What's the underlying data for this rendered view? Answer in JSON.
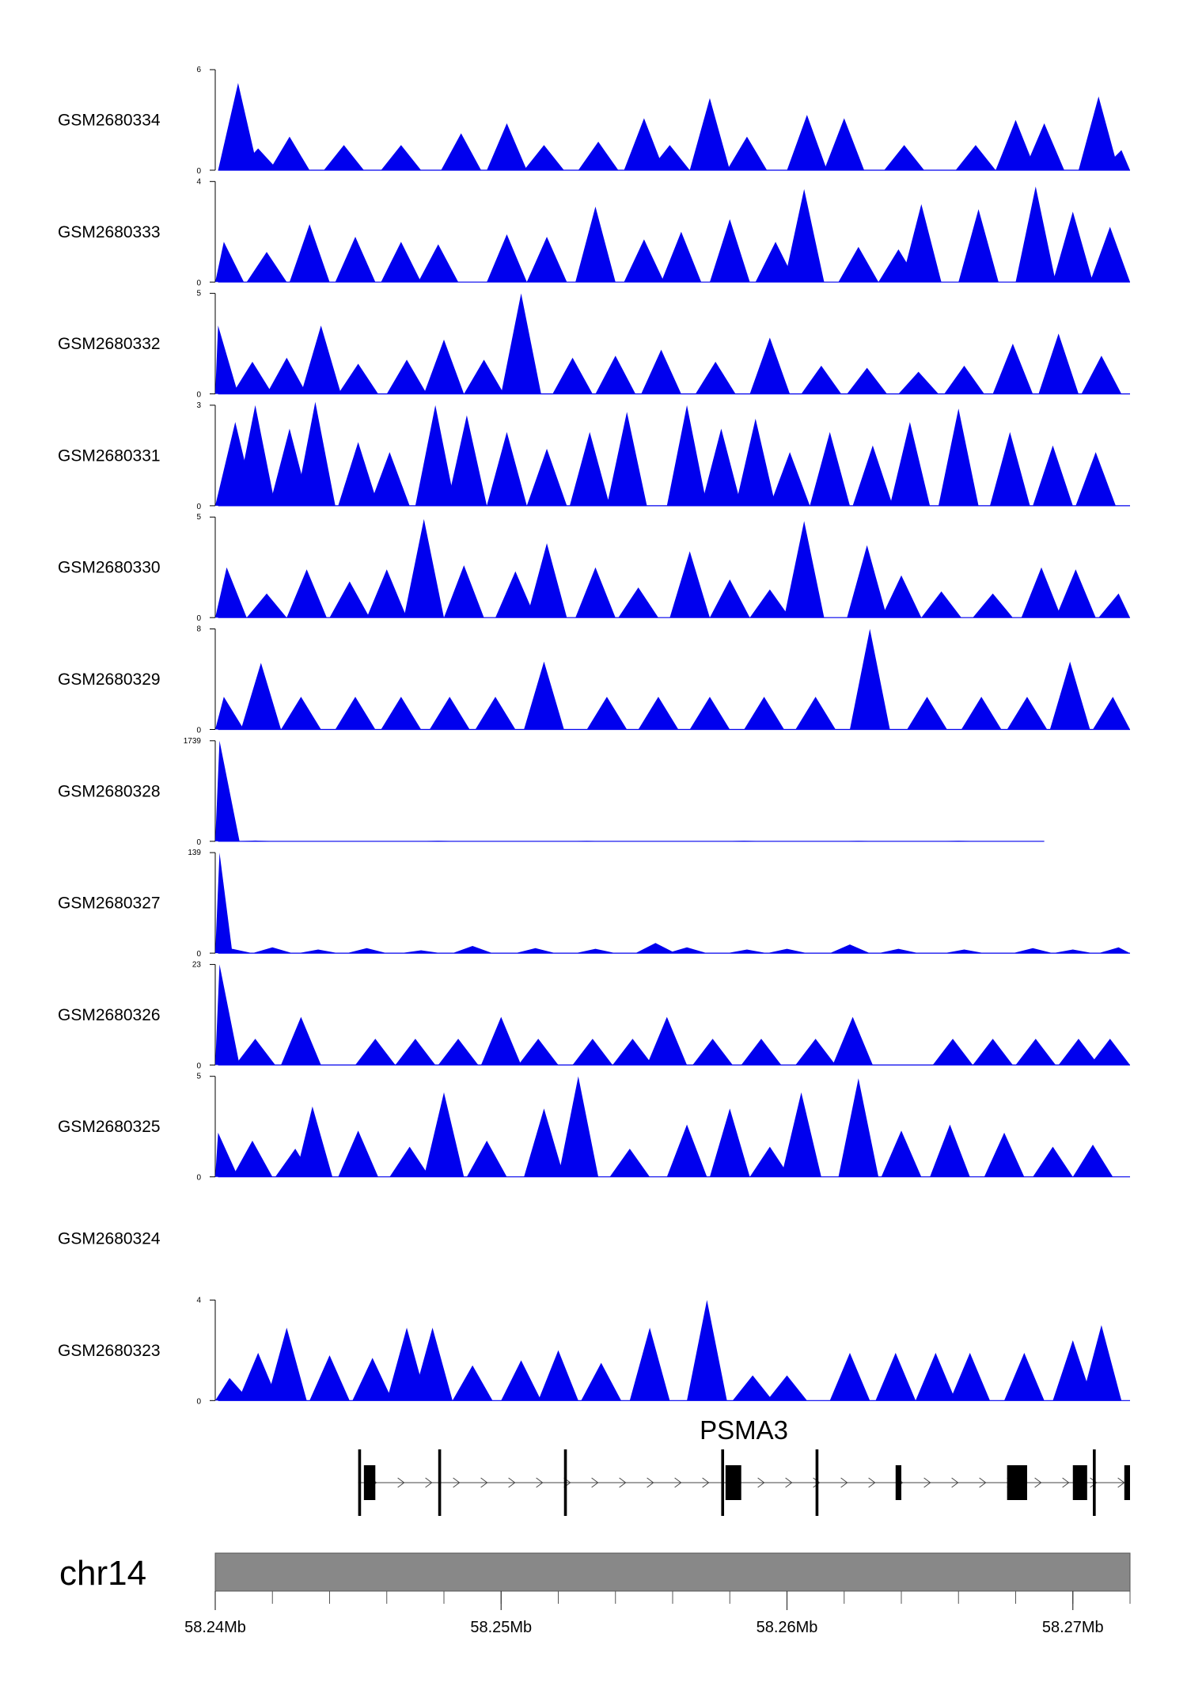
{
  "chart_data": {
    "type": "area",
    "title": "",
    "region": {
      "chromosome": "chr14",
      "start": 58240000,
      "end": 58272000
    },
    "xlabel": "",
    "x_ticks": [
      {
        "pos": 58240000,
        "label": "58.24Mb"
      },
      {
        "pos": 58250000,
        "label": "58.25Mb"
      },
      {
        "pos": 58260000,
        "label": "58.26Mb"
      },
      {
        "pos": 58270000,
        "label": "58.27Mb"
      }
    ],
    "fill_color": "#0000ee",
    "tracks": [
      {
        "name": "GSM2680334",
        "ymax": 6,
        "ymin_label": "0",
        "ymax_label": "6",
        "peaks": [
          [
            58240800,
            5.2
          ],
          [
            58241500,
            1.3
          ],
          [
            58242600,
            2.0
          ],
          [
            58244500,
            1.5
          ],
          [
            58246500,
            1.5
          ],
          [
            58248600,
            2.2
          ],
          [
            58250200,
            2.8
          ],
          [
            58251500,
            1.5
          ],
          [
            58253400,
            1.7
          ],
          [
            58255000,
            3.1
          ],
          [
            58255900,
            1.5
          ],
          [
            58257300,
            4.3
          ],
          [
            58258600,
            2.0
          ],
          [
            58260700,
            3.3
          ],
          [
            58262000,
            3.1
          ],
          [
            58264100,
            1.5
          ],
          [
            58266600,
            1.5
          ],
          [
            58268000,
            3.0
          ],
          [
            58269000,
            2.8
          ],
          [
            58270900,
            4.4
          ],
          [
            58271700,
            1.2
          ]
        ]
      },
      {
        "name": "GSM2680333",
        "ymax": 4,
        "ymin_label": "0",
        "ymax_label": "4",
        "peaks": [
          [
            58240300,
            1.6
          ],
          [
            58241800,
            1.2
          ],
          [
            58243300,
            2.3
          ],
          [
            58244900,
            1.8
          ],
          [
            58246500,
            1.6
          ],
          [
            58247800,
            1.5
          ],
          [
            58250200,
            1.9
          ],
          [
            58251600,
            1.8
          ],
          [
            58253300,
            3.0
          ],
          [
            58255000,
            1.7
          ],
          [
            58256300,
            2.0
          ],
          [
            58258000,
            2.5
          ],
          [
            58259600,
            1.6
          ],
          [
            58260600,
            3.7
          ],
          [
            58262500,
            1.4
          ],
          [
            58263900,
            1.3
          ],
          [
            58264700,
            3.1
          ],
          [
            58266700,
            2.9
          ],
          [
            58268700,
            3.8
          ],
          [
            58270000,
            2.8
          ],
          [
            58271300,
            2.2
          ]
        ]
      },
      {
        "name": "GSM2680332",
        "ymax": 5,
        "ymin_label": "0",
        "ymax_label": "5",
        "peaks": [
          [
            58240100,
            3.4
          ],
          [
            58241300,
            1.6
          ],
          [
            58242500,
            1.8
          ],
          [
            58243700,
            3.4
          ],
          [
            58245000,
            1.5
          ],
          [
            58246700,
            1.7
          ],
          [
            58248000,
            2.7
          ],
          [
            58249400,
            1.7
          ],
          [
            58250700,
            5.0
          ],
          [
            58252500,
            1.8
          ],
          [
            58254000,
            1.9
          ],
          [
            58255600,
            2.2
          ],
          [
            58257500,
            1.6
          ],
          [
            58259400,
            2.8
          ],
          [
            58261200,
            1.4
          ],
          [
            58262800,
            1.3
          ],
          [
            58264600,
            1.1
          ],
          [
            58266200,
            1.4
          ],
          [
            58267900,
            2.5
          ],
          [
            58269500,
            3.0
          ],
          [
            58271000,
            1.9
          ]
        ]
      },
      {
        "name": "GSM2680331",
        "ymax": 3,
        "ymin_label": "0",
        "ymax_label": "3",
        "peaks": [
          [
            58240700,
            2.5
          ],
          [
            58241400,
            3.0
          ],
          [
            58242600,
            2.3
          ],
          [
            58243500,
            3.1
          ],
          [
            58245000,
            1.9
          ],
          [
            58246100,
            1.6
          ],
          [
            58247700,
            3.0
          ],
          [
            58248800,
            2.7
          ],
          [
            58250200,
            2.2
          ],
          [
            58251600,
            1.7
          ],
          [
            58253100,
            2.2
          ],
          [
            58254400,
            2.8
          ],
          [
            58256500,
            3.0
          ],
          [
            58257700,
            2.3
          ],
          [
            58258900,
            2.6
          ],
          [
            58260100,
            1.6
          ],
          [
            58261500,
            2.2
          ],
          [
            58263000,
            1.8
          ],
          [
            58264300,
            2.5
          ],
          [
            58266000,
            2.9
          ],
          [
            58267800,
            2.2
          ],
          [
            58269300,
            1.8
          ],
          [
            58270800,
            1.6
          ]
        ]
      },
      {
        "name": "GSM2680330",
        "ymax": 5,
        "ymin_label": "0",
        "ymax_label": "5",
        "peaks": [
          [
            58240400,
            2.5
          ],
          [
            58241800,
            1.2
          ],
          [
            58243200,
            2.4
          ],
          [
            58244700,
            1.8
          ],
          [
            58246000,
            2.4
          ],
          [
            58247300,
            4.9
          ],
          [
            58248700,
            2.6
          ],
          [
            58250500,
            2.3
          ],
          [
            58251600,
            3.7
          ],
          [
            58253300,
            2.5
          ],
          [
            58254800,
            1.5
          ],
          [
            58256600,
            3.3
          ],
          [
            58258000,
            1.9
          ],
          [
            58259400,
            1.4
          ],
          [
            58260600,
            4.8
          ],
          [
            58262800,
            3.6
          ],
          [
            58264000,
            2.1
          ],
          [
            58265400,
            1.3
          ],
          [
            58267200,
            1.2
          ],
          [
            58268900,
            2.5
          ],
          [
            58270100,
            2.4
          ],
          [
            58271600,
            1.2
          ]
        ]
      },
      {
        "name": "GSM2680329",
        "ymax": 8,
        "ymin_label": "0",
        "ymax_label": "8",
        "peaks": [
          [
            58240300,
            2.6
          ],
          [
            58241600,
            5.3
          ],
          [
            58243000,
            2.6
          ],
          [
            58244900,
            2.6
          ],
          [
            58246500,
            2.6
          ],
          [
            58248200,
            2.6
          ],
          [
            58249800,
            2.6
          ],
          [
            58251500,
            5.4
          ],
          [
            58253700,
            2.6
          ],
          [
            58255500,
            2.6
          ],
          [
            58257300,
            2.6
          ],
          [
            58259200,
            2.6
          ],
          [
            58261000,
            2.6
          ],
          [
            58262900,
            8.0
          ],
          [
            58264900,
            2.6
          ],
          [
            58266800,
            2.6
          ],
          [
            58268400,
            2.6
          ],
          [
            58269900,
            5.4
          ],
          [
            58271400,
            2.6
          ]
        ]
      },
      {
        "name": "GSM2680328",
        "ymax": 1739,
        "ymin_label": "0",
        "ymax_label": "1739",
        "peaks": [
          [
            58240150,
            1739
          ],
          [
            58241400,
            12
          ],
          [
            58247800,
            10
          ],
          [
            58253000,
            8
          ],
          [
            58258500,
            10
          ],
          [
            58262500,
            8
          ],
          [
            58266000,
            9
          ]
        ]
      },
      {
        "name": "GSM2680327",
        "ymax": 139,
        "ymin_label": "0",
        "ymax_label": "139",
        "peaks": [
          [
            58240150,
            139
          ],
          [
            58240600,
            6
          ],
          [
            58242000,
            8
          ],
          [
            58243600,
            5
          ],
          [
            58245300,
            7
          ],
          [
            58247200,
            4
          ],
          [
            58249000,
            10
          ],
          [
            58251200,
            7
          ],
          [
            58253300,
            6
          ],
          [
            58255400,
            14
          ],
          [
            58256500,
            8
          ],
          [
            58258600,
            5
          ],
          [
            58260000,
            6
          ],
          [
            58262200,
            12
          ],
          [
            58263900,
            6
          ],
          [
            58266200,
            5
          ],
          [
            58268600,
            7
          ],
          [
            58270000,
            5
          ],
          [
            58271600,
            8
          ]
        ]
      },
      {
        "name": "GSM2680326",
        "ymax": 23,
        "ymin_label": "0",
        "ymax_label": "23",
        "peaks": [
          [
            58240150,
            23
          ],
          [
            58241400,
            6
          ],
          [
            58243000,
            11
          ],
          [
            58245600,
            6
          ],
          [
            58247000,
            6
          ],
          [
            58248500,
            6
          ],
          [
            58250000,
            11
          ],
          [
            58251300,
            6
          ],
          [
            58253200,
            6
          ],
          [
            58254600,
            6
          ],
          [
            58255800,
            11
          ],
          [
            58257400,
            6
          ],
          [
            58259100,
            6
          ],
          [
            58261000,
            6
          ],
          [
            58262300,
            11
          ],
          [
            58265800,
            6
          ],
          [
            58267200,
            6
          ],
          [
            58268700,
            6
          ],
          [
            58270200,
            6
          ],
          [
            58271300,
            6
          ]
        ]
      },
      {
        "name": "GSM2680325",
        "ymax": 5,
        "ymin_label": "0",
        "ymax_label": "5",
        "peaks": [
          [
            58240100,
            2.2
          ],
          [
            58241300,
            1.8
          ],
          [
            58242800,
            1.4
          ],
          [
            58243400,
            3.5
          ],
          [
            58245000,
            2.3
          ],
          [
            58246800,
            1.5
          ],
          [
            58248000,
            4.2
          ],
          [
            58249500,
            1.8
          ],
          [
            58251500,
            3.4
          ],
          [
            58252700,
            5.0
          ],
          [
            58254500,
            1.4
          ],
          [
            58256500,
            2.6
          ],
          [
            58258000,
            3.4
          ],
          [
            58259400,
            1.5
          ],
          [
            58260500,
            4.2
          ],
          [
            58262500,
            4.9
          ],
          [
            58264000,
            2.3
          ],
          [
            58265700,
            2.6
          ],
          [
            58267600,
            2.2
          ],
          [
            58269300,
            1.5
          ],
          [
            58270700,
            1.6
          ]
        ]
      },
      {
        "name": "GSM2680324",
        "ymax": null,
        "ymin_label": "",
        "ymax_label": "",
        "peaks": []
      },
      {
        "name": "GSM2680323",
        "ymax": 4,
        "ymin_label": "0",
        "ymax_label": "4",
        "peaks": [
          [
            58240500,
            0.9
          ],
          [
            58241500,
            1.9
          ],
          [
            58242500,
            2.9
          ],
          [
            58244000,
            1.8
          ],
          [
            58245500,
            1.7
          ],
          [
            58246700,
            2.9
          ],
          [
            58247600,
            2.9
          ],
          [
            58249000,
            1.4
          ],
          [
            58250700,
            1.6
          ],
          [
            58252000,
            2.0
          ],
          [
            58253500,
            1.5
          ],
          [
            58255200,
            2.9
          ],
          [
            58257200,
            4.0
          ],
          [
            58258800,
            1.0
          ],
          [
            58260000,
            1.0
          ],
          [
            58262200,
            1.9
          ],
          [
            58263800,
            1.9
          ],
          [
            58265200,
            1.9
          ],
          [
            58266400,
            1.9
          ],
          [
            58268300,
            1.9
          ],
          [
            58270000,
            2.4
          ],
          [
            58271000,
            3.0
          ]
        ]
      }
    ],
    "gene": {
      "name": "PSMA3",
      "strand": "+",
      "start": 58245000,
      "end": 58272000,
      "exons": [
        [
          58245000,
          58245100
        ],
        [
          58245200,
          58245600
        ],
        [
          58247800,
          58247900
        ],
        [
          58252200,
          58252300
        ],
        [
          58257700,
          58257800
        ],
        [
          58257850,
          58258400
        ],
        [
          58261000,
          58261100
        ],
        [
          58263800,
          58264000
        ],
        [
          58267700,
          58268400
        ],
        [
          58270000,
          58270500
        ],
        [
          58270700,
          58270800
        ],
        [
          58271800,
          58272000
        ]
      ]
    },
    "ideogram_color": "#888888"
  }
}
